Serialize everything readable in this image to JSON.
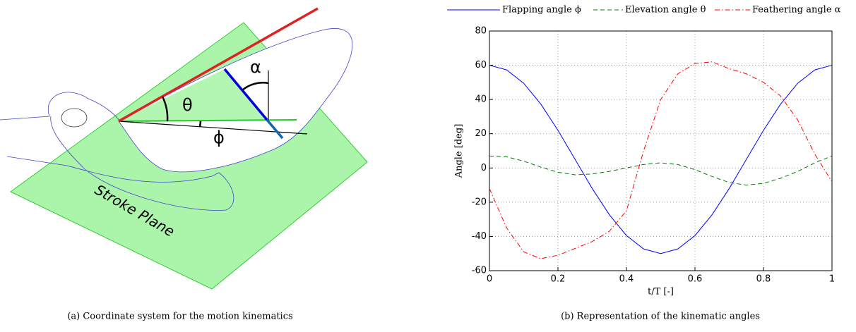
{
  "figure_a": {
    "labels": {
      "theta": "θ",
      "alpha": "α",
      "phi": "ϕ",
      "plane": "Stroke Plane"
    },
    "caption": "(a) Coordinate system for the motion kinematics"
  },
  "chart_data": {
    "type": "line",
    "caption": "(b) Representation of the kinematic angles",
    "xlabel": "t/T [-]",
    "ylabel": "Angle [deg]",
    "x": [
      0,
      0.05,
      0.1,
      0.15,
      0.2,
      0.25,
      0.3,
      0.35,
      0.4,
      0.45,
      0.5,
      0.55,
      0.6,
      0.65,
      0.7,
      0.75,
      0.8,
      0.85,
      0.9,
      0.95,
      1
    ],
    "series": [
      {
        "name": "Flapping angle ϕ",
        "color": "#0000ff",
        "dash": "solid",
        "values": [
          60,
          57.3,
          49.5,
          37.3,
          22,
          5,
          -12,
          -27.3,
          -39.5,
          -47.3,
          -50,
          -47.3,
          -39.5,
          -27.3,
          -12,
          5,
          22,
          37.3,
          49.5,
          57.3,
          60
        ]
      },
      {
        "name": "Elevation angle θ",
        "color": "#007f00",
        "dash": "dashed",
        "values": [
          7,
          6.5,
          4,
          0.5,
          -2.5,
          -4,
          -3.5,
          -2,
          0,
          2,
          3,
          2,
          -1,
          -5,
          -8.5,
          -10,
          -9,
          -6,
          -2,
          3,
          7
        ]
      },
      {
        "name": "Feathering angle α",
        "color": "#ff0000",
        "dash": "dashdot",
        "values": [
          -12,
          -35,
          -49,
          -53,
          -51,
          -47,
          -43,
          -37,
          -25,
          10,
          40,
          55,
          61,
          62,
          58,
          55,
          50,
          42,
          28,
          8,
          -8
        ]
      }
    ],
    "xlim": [
      0,
      1
    ],
    "xticks": [
      0,
      0.2,
      0.4,
      0.6,
      0.8,
      1
    ],
    "ylim": [
      -60,
      80
    ],
    "yticks": [
      -60,
      -40,
      -20,
      0,
      20,
      40,
      60,
      80
    ],
    "grid": true,
    "legend": "top"
  }
}
